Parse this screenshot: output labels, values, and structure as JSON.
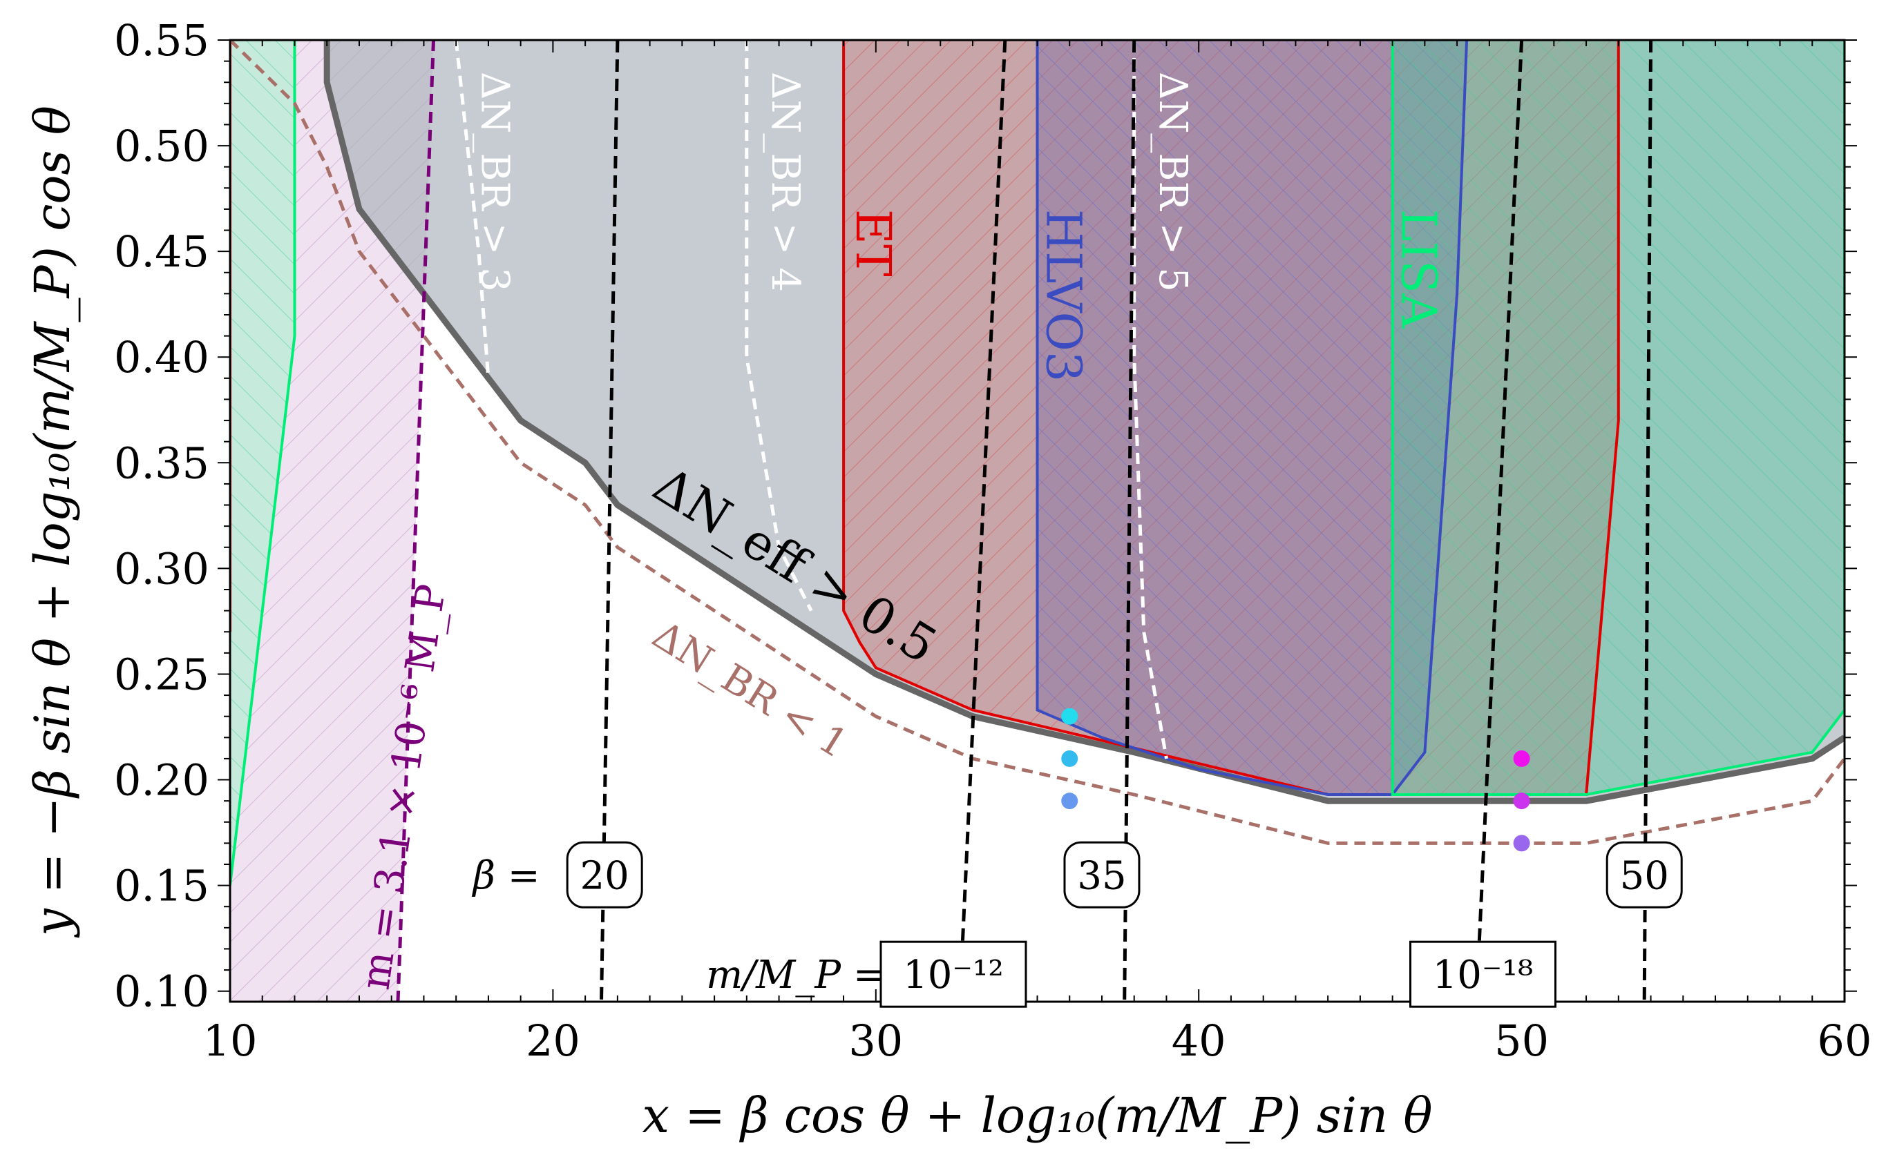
{
  "chart_data": {
    "type": "area",
    "xlabel": "x = β cos θ + log₁₀(m/M_P) sin θ",
    "ylabel": "y = −β sin θ + log₁₀(m/M_P) cos θ",
    "xlim": [
      10,
      60
    ],
    "ylim": [
      0.095,
      0.55
    ],
    "xticks": [
      10,
      20,
      30,
      40,
      50,
      60
    ],
    "xtick_labels": [
      "10",
      "20",
      "30",
      "40",
      "50",
      "60"
    ],
    "yticks": [
      0.1,
      0.15,
      0.2,
      0.25,
      0.3,
      0.35,
      0.4,
      0.45,
      0.5,
      0.55
    ],
    "ytick_labels": [
      "0.10",
      "0.15",
      "0.20",
      "0.25",
      "0.30",
      "0.35",
      "0.40",
      "0.45",
      "0.50",
      "0.55"
    ],
    "regions": [
      {
        "name": "ΔN_eff > 0.5",
        "color": "#a7b0b9",
        "edge": "#666666",
        "boundary": [
          [
            13,
            0.55
          ],
          [
            13,
            0.53
          ],
          [
            14,
            0.47
          ],
          [
            19,
            0.37
          ],
          [
            21,
            0.35
          ],
          [
            22,
            0.33
          ],
          [
            30,
            0.25
          ],
          [
            33,
            0.23
          ],
          [
            38,
            0.213
          ],
          [
            44,
            0.19
          ],
          [
            52,
            0.19
          ],
          [
            59,
            0.21
          ],
          [
            60,
            0.22
          ]
        ]
      },
      {
        "name": "ET",
        "color": "#e00000",
        "boundary": [
          [
            29,
            0.55
          ],
          [
            29,
            0.28
          ],
          [
            29.5,
            0.265
          ],
          [
            30,
            0.253
          ],
          [
            33,
            0.233
          ],
          [
            38,
            0.215
          ],
          [
            44,
            0.193
          ],
          [
            52,
            0.193
          ],
          [
            53,
            0.37
          ],
          [
            53,
            0.55
          ]
        ],
        "left_strip": [
          [
            10,
            0.55
          ],
          [
            10,
            0.27
          ]
        ]
      },
      {
        "name": "HLVO3",
        "color": "#3a4cc0",
        "boundary": [
          [
            35,
            0.55
          ],
          [
            35,
            0.233
          ],
          [
            37,
            0.22
          ],
          [
            40,
            0.205
          ],
          [
            44,
            0.193
          ],
          [
            46,
            0.193
          ],
          [
            47,
            0.213
          ],
          [
            48,
            0.43
          ],
          [
            48.3,
            0.55
          ]
        ]
      },
      {
        "name": "LISA",
        "color": "#00ee77",
        "boundary": [
          [
            46,
            0.55
          ],
          [
            46,
            0.193
          ],
          [
            52,
            0.193
          ],
          [
            59,
            0.213
          ],
          [
            60,
            0.233
          ],
          [
            60,
            0.55
          ]
        ],
        "left_strip": [
          [
            10,
            0.55
          ],
          [
            12,
            0.55
          ],
          [
            12,
            0.41
          ],
          [
            10,
            0.15
          ]
        ]
      },
      {
        "name": "m = 3.1 × 10⁻⁶ M_P",
        "color": "#7a007a",
        "boundary": [
          [
            16.3,
            0.55
          ],
          [
            15.2,
            0.095
          ]
        ]
      }
    ],
    "dashed_curves": [
      {
        "name": "ΔN_BR < 1",
        "color": "#a87068",
        "points": [
          [
            10,
            0.55
          ],
          [
            12,
            0.52
          ],
          [
            13,
            0.49
          ],
          [
            14,
            0.45
          ],
          [
            19,
            0.35
          ],
          [
            21,
            0.33
          ],
          [
            22,
            0.31
          ],
          [
            30,
            0.23
          ],
          [
            33,
            0.21
          ],
          [
            38,
            0.193
          ],
          [
            44,
            0.17
          ],
          [
            52,
            0.17
          ],
          [
            59,
            0.19
          ],
          [
            60,
            0.21
          ]
        ]
      },
      {
        "name": "ΔN_BR > 3",
        "color": "#ffffff",
        "points": [
          [
            17,
            0.55
          ],
          [
            17.7,
            0.45
          ],
          [
            18,
            0.39
          ]
        ]
      },
      {
        "name": "ΔN_BR > 4",
        "color": "#ffffff",
        "points": [
          [
            26,
            0.55
          ],
          [
            26,
            0.4
          ],
          [
            27,
            0.31
          ],
          [
            28,
            0.28
          ]
        ]
      },
      {
        "name": "ΔN_BR > 5",
        "color": "#ffffff",
        "points": [
          [
            38,
            0.55
          ],
          [
            38,
            0.4
          ],
          [
            38.3,
            0.27
          ],
          [
            39,
            0.21
          ]
        ]
      }
    ],
    "beta_contours": [
      {
        "label": "20",
        "points": [
          [
            22,
            0.55
          ],
          [
            21.5,
            0.095
          ]
        ]
      },
      {
        "label": "35",
        "points": [
          [
            38,
            0.55
          ],
          [
            37.7,
            0.095
          ]
        ]
      },
      {
        "label": "50",
        "points": [
          [
            54,
            0.55
          ],
          [
            53.8,
            0.095
          ]
        ]
      }
    ],
    "mass_contours": [
      {
        "label": "10⁻¹²",
        "points": [
          [
            34,
            0.55
          ],
          [
            32.6,
            0.095
          ]
        ]
      },
      {
        "label": "10⁻¹⁸",
        "points": [
          [
            50,
            0.55
          ],
          [
            48.6,
            0.095
          ]
        ]
      }
    ],
    "points": [
      {
        "x": 36,
        "y": 0.23,
        "color": "#22ddee"
      },
      {
        "x": 36,
        "y": 0.21,
        "color": "#33bbee"
      },
      {
        "x": 36,
        "y": 0.19,
        "color": "#6699ee"
      },
      {
        "x": 50,
        "y": 0.21,
        "color": "#ee11ee"
      },
      {
        "x": 50,
        "y": 0.19,
        "color": "#cc33ee"
      },
      {
        "x": 50,
        "y": 0.17,
        "color": "#9966ee"
      }
    ],
    "annotations": {
      "neff": "ΔN_eff > 0.5",
      "br1": "ΔN_BR < 1",
      "br3": "ΔN_BR > 3",
      "br4": "ΔN_BR > 4",
      "br5": "ΔN_BR > 5",
      "et": "ET",
      "hlvo3": "HLVO3",
      "lisa": "LISA",
      "mass_line": "m = 3.1 × 10⁻⁶ M_P",
      "beta_prefix": "β =",
      "mass_prefix": "m/M_P ="
    }
  }
}
